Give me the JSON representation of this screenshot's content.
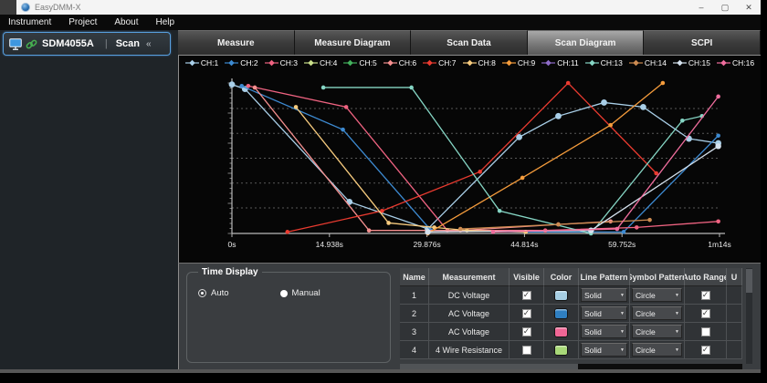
{
  "window": {
    "title": "EasyDMM-X",
    "controls": {
      "minimize": "–",
      "maximize": "▢",
      "close": "✕"
    }
  },
  "menu": {
    "items": [
      "Instrument",
      "Project",
      "About",
      "Help"
    ]
  },
  "device_bar": {
    "name": "SDM4055A",
    "separator": "|",
    "mode": "Scan",
    "collapse": "«"
  },
  "tabs": [
    {
      "label": "Measure",
      "active": false
    },
    {
      "label": "Measure Diagram",
      "active": false
    },
    {
      "label": "Scan Data",
      "active": false
    },
    {
      "label": "Scan Diagram",
      "active": true
    },
    {
      "label": "SCPI",
      "active": false
    }
  ],
  "chart_data": {
    "type": "line",
    "x_unit": "seconds",
    "x_range": [
      0,
      74.69
    ],
    "y_range": [
      0,
      100
    ],
    "y_axis_labeled": false,
    "grid": "dashed-horizontal",
    "legend_position": "top",
    "x_ticks": [
      {
        "t": 0,
        "label": "0s"
      },
      {
        "t": 14.938,
        "label": "14.938s"
      },
      {
        "t": 29.876,
        "label": "29.876s"
      },
      {
        "t": 44.814,
        "label": "44.814s"
      },
      {
        "t": 59.752,
        "label": "59.752s"
      },
      {
        "t": 74.69,
        "label": "1m14s"
      }
    ],
    "gridlines_v": [
      17,
      33.5,
      50,
      66.5,
      83
    ],
    "legend": [
      {
        "label": "CH:1",
        "color": "#a9cfe8"
      },
      {
        "label": "CH:2",
        "color": "#3d8ad1"
      },
      {
        "label": "CH:3",
        "color": "#ef6381"
      },
      {
        "label": "CH:4",
        "color": "#cadf8b"
      },
      {
        "label": "CH:5",
        "color": "#43b05c"
      },
      {
        "label": "CH:6",
        "color": "#f58f8f"
      },
      {
        "label": "CH:7",
        "color": "#ea3b30"
      },
      {
        "label": "CH:8",
        "color": "#f7cb7e"
      },
      {
        "label": "CH:9",
        "color": "#f59c3c"
      },
      {
        "label": "CH:11",
        "color": "#8e6bc8"
      },
      {
        "label": "CH:13",
        "color": "#85d5c4"
      },
      {
        "label": "CH:14",
        "color": "#cd8b51"
      },
      {
        "label": "CH:15",
        "color": "#d5e2ee"
      },
      {
        "label": "CH:16",
        "color": "#ef6d9d"
      }
    ],
    "series": [
      {
        "name": "CH:1",
        "color": "#a9cfe8",
        "marker_r": 3.4,
        "points": [
          [
            0,
            99
          ],
          [
            2,
            96
          ],
          [
            18,
            21
          ],
          [
            30,
            3
          ],
          [
            44,
            64
          ],
          [
            50,
            78
          ],
          [
            57,
            87
          ],
          [
            63,
            84
          ],
          [
            70,
            63
          ],
          [
            74.5,
            60
          ]
        ]
      },
      {
        "name": "CH:2",
        "color": "#3d8ad1",
        "marker_r": 2.3,
        "points": [
          [
            1.5,
            98
          ],
          [
            17,
            69
          ],
          [
            30.5,
            2
          ],
          [
            45,
            1
          ],
          [
            60,
            1
          ],
          [
            74.5,
            65
          ]
        ]
      },
      {
        "name": "CH:3",
        "color": "#ef6381",
        "marker_r": 2.3,
        "points": [
          [
            2.5,
            98
          ],
          [
            17.5,
            84
          ],
          [
            33,
            2
          ],
          [
            48,
            2
          ],
          [
            62,
            4
          ],
          [
            74.5,
            8
          ]
        ]
      },
      {
        "name": "CH:4",
        "color": "#cadf8b",
        "marker_r": 2.3,
        "points": []
      },
      {
        "name": "CH:5",
        "color": "#43b05c",
        "marker_r": 2.3,
        "points": []
      },
      {
        "name": "CH:6",
        "color": "#f58f8f",
        "marker_r": 2.3,
        "points": [
          [
            3.5,
            97
          ],
          [
            21,
            2
          ],
          [
            35,
            2
          ],
          [
            50,
            6
          ],
          [
            58,
            8
          ]
        ]
      },
      {
        "name": "CH:7",
        "color": "#ea3b30",
        "marker_r": 2.3,
        "points": [
          [
            8.5,
            1
          ],
          [
            23,
            15
          ],
          [
            38,
            41
          ],
          [
            51.5,
            100
          ],
          [
            65,
            40
          ]
        ]
      },
      {
        "name": "CH:8",
        "color": "#f7cb7e",
        "marker_r": 2.3,
        "points": [
          [
            9.8,
            84
          ],
          [
            24,
            7
          ],
          [
            31,
            4
          ],
          [
            36,
            2
          ],
          [
            45,
            1
          ]
        ]
      },
      {
        "name": "CH:9",
        "color": "#f59c3c",
        "marker_r": 2.3,
        "points": [
          [
            30,
            0
          ],
          [
            44.5,
            37
          ],
          [
            58,
            72
          ],
          [
            66,
            100
          ]
        ]
      },
      {
        "name": "CH:11",
        "color": "#8e6bc8",
        "marker_r": 2.3,
        "points": []
      },
      {
        "name": "CH:13",
        "color": "#85d5c4",
        "marker_r": 2.3,
        "points": [
          [
            14,
            97
          ],
          [
            27.5,
            97
          ],
          [
            41,
            15
          ],
          [
            55,
            0
          ],
          [
            69,
            75
          ],
          [
            72,
            78
          ]
        ]
      },
      {
        "name": "CH:14",
        "color": "#cd8b51",
        "marker_r": 2.3,
        "points": [
          [
            35,
            3
          ],
          [
            50,
            6
          ],
          [
            64,
            9
          ]
        ]
      },
      {
        "name": "CH:15",
        "color": "#d5e2ee",
        "marker_r": 3.2,
        "points": [
          [
            30,
            1
          ],
          [
            55,
            2
          ],
          [
            74.5,
            58
          ]
        ]
      },
      {
        "name": "CH:16",
        "color": "#ef6d9d",
        "marker_r": 2.3,
        "points": [
          [
            40,
            1
          ],
          [
            59,
            3
          ],
          [
            74.5,
            91
          ]
        ]
      }
    ]
  },
  "time_display": {
    "title": "Time Display",
    "options": [
      {
        "label": "Auto",
        "selected": true
      },
      {
        "label": "Manual",
        "selected": false
      }
    ]
  },
  "table": {
    "headers": [
      "Name",
      "Measurement",
      "Visible",
      "Color",
      "Line Pattern",
      "Symbol Pattern",
      "Auto Range",
      "U"
    ],
    "rows": [
      {
        "name": "1",
        "measurement": "DC Voltage",
        "visible": true,
        "color": "#a6cee3",
        "line_pattern": "Solid",
        "symbol_pattern": "Circle",
        "auto_range": true
      },
      {
        "name": "2",
        "measurement": "AC Voltage",
        "visible": true,
        "color": "#2f7fc1",
        "line_pattern": "Solid",
        "symbol_pattern": "Circle",
        "auto_range": true
      },
      {
        "name": "3",
        "measurement": "AC Voltage",
        "visible": true,
        "color": "#f06695",
        "line_pattern": "Solid",
        "symbol_pattern": "Circle",
        "auto_range": false
      },
      {
        "name": "4",
        "measurement": "4 Wire Resistance",
        "visible": false,
        "color": "#a8d878",
        "line_pattern": "Solid",
        "symbol_pattern": "Circle",
        "auto_range": true
      }
    ]
  }
}
